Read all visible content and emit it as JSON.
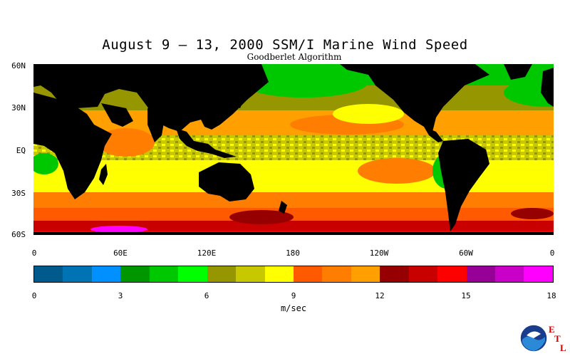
{
  "title": "August 9 – 13, 2000 SSM/I Marine Wind Speed",
  "subtitle": "Goodberlet Algorithm",
  "map": {
    "lat_labels": [
      "60N",
      "30N",
      "EQ",
      "30S",
      "60S"
    ],
    "lon_labels": [
      "0",
      "60E",
      "120E",
      "180",
      "120W",
      "60W",
      "0"
    ]
  },
  "colorbar": {
    "unit": "m/sec",
    "ticks": [
      "0",
      "3",
      "6",
      "9",
      "12",
      "15",
      "18"
    ],
    "range": [
      0,
      18
    ],
    "colors": [
      "#005a8c",
      "#0073b4",
      "#0090ff",
      "#009600",
      "#00c800",
      "#00ff00",
      "#969600",
      "#c8c800",
      "#ffff00",
      "#ff5a00",
      "#ff7d00",
      "#ffa000",
      "#960000",
      "#c80000",
      "#ff0000",
      "#960096",
      "#c800c8",
      "#ff00ff"
    ]
  },
  "logo": {
    "agency": "NOAA",
    "letters": [
      "E",
      "T",
      "L"
    ]
  }
}
